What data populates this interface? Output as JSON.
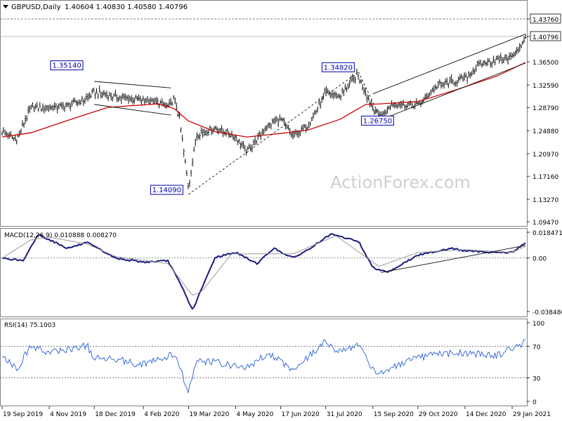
{
  "header": {
    "symbol": "GBPUSD,Daily",
    "ohlc": "1.40604 1.40830 1.40580 1.40796"
  },
  "watermark": "ActionForex.com",
  "colors": {
    "price_bars": "#111111",
    "moving_average": "#cc0000",
    "macd_line": "#1a1a80",
    "macd_signal": "#9a9a9a",
    "rsi_line": "#3a6dd8",
    "trendlines": "#111111",
    "label_border": "#0000aa",
    "watermark": "#cfcfcf"
  },
  "chart_data": [
    {
      "type": "line",
      "panel": "price",
      "series": [
        {
          "name": "Close",
          "x": [
            "2019-09-19",
            "2019-10-03",
            "2019-10-17",
            "2019-11-04",
            "2019-11-22",
            "2019-12-11",
            "2019-12-18",
            "2020-01-08",
            "2020-01-28",
            "2020-02-18",
            "2020-02-28",
            "2020-03-05",
            "2020-03-10",
            "2020-03-19",
            "2020-03-27",
            "2020-04-14",
            "2020-05-04",
            "2020-05-15",
            "2020-06-05",
            "2020-06-17",
            "2020-06-29",
            "2020-07-14",
            "2020-07-31",
            "2020-08-14",
            "2020-08-31",
            "2020-09-15",
            "2020-09-23",
            "2020-10-05",
            "2020-10-29",
            "2020-11-18",
            "2020-12-04",
            "2020-12-14",
            "2020-12-29",
            "2021-01-14",
            "2021-01-29",
            "2021-02-05",
            "2021-02-11"
          ],
          "y": [
            1.248,
            1.232,
            1.287,
            1.288,
            1.291,
            1.302,
            1.314,
            1.305,
            1.302,
            1.297,
            1.289,
            1.302,
            1.272,
            1.152,
            1.243,
            1.253,
            1.238,
            1.213,
            1.258,
            1.269,
            1.238,
            1.258,
            1.312,
            1.307,
            1.344,
            1.286,
            1.273,
            1.295,
            1.292,
            1.326,
            1.332,
            1.337,
            1.362,
            1.368,
            1.374,
            1.387,
            1.408
          ]
        },
        {
          "name": "Moving Average",
          "x": [
            "2019-09-19",
            "2019-10-17",
            "2019-11-22",
            "2019-12-31",
            "2020-02-18",
            "2020-03-05",
            "2020-03-19",
            "2020-04-14",
            "2020-05-15",
            "2020-06-17",
            "2020-07-14",
            "2020-08-14",
            "2020-09-08",
            "2020-09-23",
            "2020-10-29",
            "2020-12-04",
            "2021-01-14",
            "2021-02-11"
          ],
          "y": [
            1.238,
            1.245,
            1.266,
            1.288,
            1.294,
            1.286,
            1.265,
            1.247,
            1.238,
            1.244,
            1.25,
            1.268,
            1.293,
            1.294,
            1.298,
            1.317,
            1.341,
            1.364
          ]
        }
      ],
      "xlim": [
        "2019-09-19",
        "2021-02-11"
      ],
      "ylim": [
        1.0947,
        1.4376
      ],
      "y_ticks": [
        "1.43760",
        "1.40796",
        "1.36500",
        "1.32590",
        "1.28790",
        "1.24880",
        "1.20970",
        "1.17160",
        "1.13270",
        "1.09470"
      ],
      "x_ticks": [
        "19 Sep 2019",
        "4 Nov 2019",
        "18 Dec 2019",
        "4 Feb 2020",
        "19 Mar 2020",
        "4 May 2020",
        "17 Jun 2020",
        "31 Jul 2020",
        "15 Sep 2020",
        "29 Oct 2020",
        "14 Dec 2020",
        "29 Jan 2021"
      ],
      "annotations": [
        {
          "text": "1.35140",
          "x": "2019-12-11",
          "y": 1.3514
        },
        {
          "text": "1.14090",
          "x": "2020-03-19",
          "y": 1.1409
        },
        {
          "text": "1.34820",
          "x": "2020-09-01",
          "y": 1.3482
        },
        {
          "text": "1.26750",
          "x": "2020-09-23",
          "y": 1.2675
        }
      ],
      "levels": [
        "1.43760",
        "1.40796"
      ]
    },
    {
      "type": "line",
      "panel": "macd",
      "label": "MACD(12,26,9) 0.010888 0.008270",
      "series": [
        {
          "name": "MACD",
          "x": [
            "2019-09-19",
            "2019-10-10",
            "2019-10-24",
            "2019-11-22",
            "2019-12-11",
            "2020-01-08",
            "2020-02-04",
            "2020-02-28",
            "2020-03-12",
            "2020-03-23",
            "2020-04-14",
            "2020-05-04",
            "2020-05-25",
            "2020-06-10",
            "2020-06-29",
            "2020-07-14",
            "2020-08-05",
            "2020-09-01",
            "2020-09-15",
            "2020-09-30",
            "2020-10-29",
            "2020-11-30",
            "2020-12-14",
            "2021-01-14",
            "2021-01-29",
            "2021-02-11"
          ],
          "y": [
            0.0,
            -0.002,
            0.017,
            0.007,
            0.011,
            -0.0002,
            -0.003,
            -0.002,
            -0.02,
            -0.0375,
            0.0005,
            0.004,
            -0.004,
            0.007,
            0.0,
            0.006,
            0.017,
            0.012,
            -0.007,
            -0.01,
            0.002,
            0.007,
            0.005,
            0.004,
            0.004,
            0.0109
          ]
        },
        {
          "name": "Signal",
          "x": [
            "2019-09-19",
            "2019-10-17",
            "2019-11-04",
            "2019-12-11",
            "2020-01-08",
            "2020-02-28",
            "2020-03-23",
            "2020-04-01",
            "2020-04-30",
            "2020-06-29",
            "2020-08-10",
            "2020-09-21",
            "2020-10-29",
            "2020-12-14",
            "2021-01-29",
            "2021-02-11"
          ],
          "y": [
            0.0,
            0.013,
            0.015,
            0.01,
            0.001,
            -0.004,
            -0.027,
            -0.024,
            0.003,
            0.003,
            0.016,
            -0.006,
            0.004,
            0.006,
            0.004,
            0.0083
          ]
        }
      ],
      "ylim": [
        -0.0385,
        0.0185
      ],
      "y_ticks": [
        "0.018471",
        "0.00",
        "-0.038486"
      ]
    },
    {
      "type": "line",
      "panel": "rsi",
      "label": "RSI(14) 75.1003",
      "series": [
        {
          "name": "RSI",
          "x": [
            "2019-09-19",
            "2019-10-03",
            "2019-10-17",
            "2019-11-04",
            "2019-11-22",
            "2019-12-11",
            "2019-12-18",
            "2020-01-08",
            "2020-01-28",
            "2020-02-18",
            "2020-03-05",
            "2020-03-19",
            "2020-03-27",
            "2020-04-14",
            "2020-05-15",
            "2020-06-05",
            "2020-06-29",
            "2020-07-31",
            "2020-08-14",
            "2020-09-01",
            "2020-09-15",
            "2020-09-23",
            "2020-10-29",
            "2020-11-18",
            "2020-12-14",
            "2021-01-14",
            "2021-01-29",
            "2021-02-11"
          ],
          "y": [
            60,
            41,
            70,
            62,
            66,
            71,
            54,
            55,
            47,
            52,
            60,
            13,
            51,
            50,
            42,
            62,
            40,
            76,
            62,
            74,
            40,
            37,
            55,
            60,
            62,
            58,
            68,
            75.1
          ]
        }
      ],
      "ylim": [
        0,
        100
      ],
      "y_ticks": [
        "100",
        "70",
        "30",
        "0"
      ],
      "levels": [
        70,
        30
      ]
    }
  ]
}
